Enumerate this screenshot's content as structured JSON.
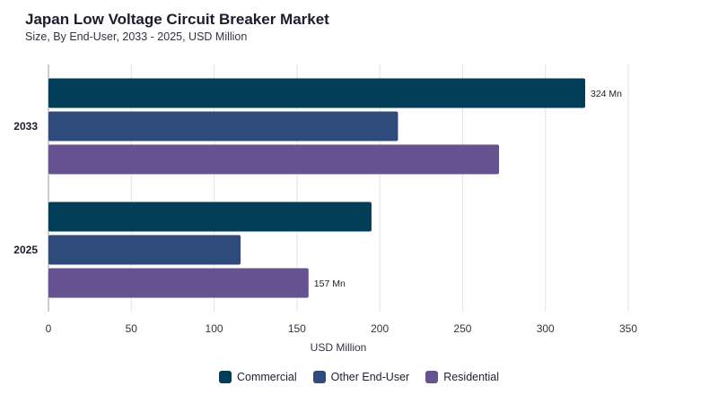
{
  "chart_data": {
    "type": "bar",
    "orientation": "horizontal",
    "title": "Japan Low Voltage Circuit Breaker Market",
    "subtitle": "Size, By End-User, 2033 - 2025, USD Million",
    "xlabel": "USD Million",
    "ylabel": "",
    "xlim": [
      0,
      350
    ],
    "xticks": [
      "0",
      "50",
      "100",
      "150",
      "200",
      "250",
      "300",
      "350"
    ],
    "categories": [
      "2033",
      "2025"
    ],
    "series": [
      {
        "name": "Commercial",
        "color": "#023e58",
        "values": [
          324,
          195
        ],
        "labels": [
          "324 Mn",
          ""
        ]
      },
      {
        "name": "Other End-User",
        "color": "#2f4b7c",
        "values": [
          211,
          116
        ],
        "labels": [
          "",
          ""
        ]
      },
      {
        "name": "Residential",
        "color": "#665191",
        "values": [
          272,
          157
        ],
        "labels": [
          "",
          "157 Mn"
        ]
      }
    ],
    "grid": true,
    "legend_position": "bottom-center"
  }
}
